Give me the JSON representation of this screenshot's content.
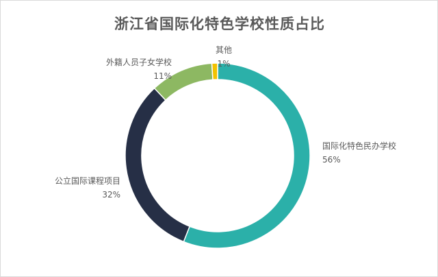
{
  "chart_data": {
    "type": "pie",
    "variant": "donut",
    "title": "浙江省国际化特色学校性质占比",
    "legend": "none",
    "slices": [
      {
        "name": "国际化特色民办学校",
        "value": 56,
        "label": "56%",
        "color": "#2bb0a9"
      },
      {
        "name": "公立国际课程项目",
        "value": 32,
        "label": "32%",
        "color": "#262f46"
      },
      {
        "name": "外籍人员子女学校",
        "value": 11,
        "label": "11%",
        "color": "#8db862"
      },
      {
        "name": "其他",
        "value": 1,
        "label": "1%",
        "color": "#f2c200"
      }
    ]
  }
}
